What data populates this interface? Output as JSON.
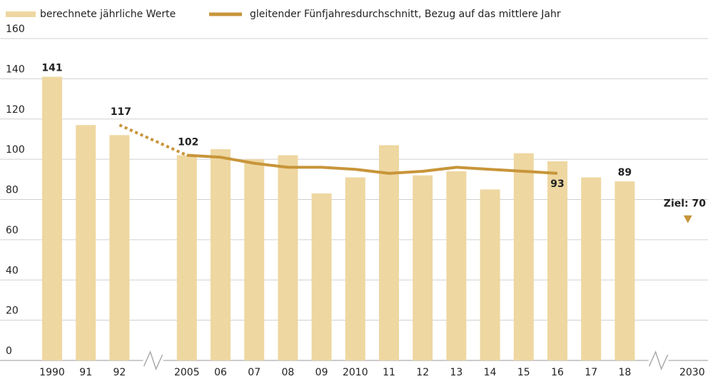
{
  "chart_data": {
    "type": "bar_line",
    "categories": [
      "1990",
      "91",
      "92",
      null,
      "2005",
      "06",
      "07",
      "08",
      "09",
      "2010",
      "11",
      "12",
      "13",
      "14",
      "15",
      "16",
      "17",
      "18",
      null,
      "2030"
    ],
    "series": [
      {
        "name": "berechnete jährliche Werte",
        "type": "bar",
        "color": "#eed7a1",
        "values": [
          141,
          117,
          112,
          null,
          102,
          105,
          100,
          102,
          83,
          91,
          107,
          92,
          94,
          85,
          103,
          99,
          91,
          89,
          null,
          null
        ],
        "labeled": [
          0,
          17
        ]
      },
      {
        "name": "gleitender Fünfjahresdurchschnitt, Bezug auf das mittlere Jahr",
        "type": "line",
        "color": "#c8953a",
        "values": [
          null,
          null,
          117,
          null,
          102,
          101,
          98,
          96,
          96,
          95,
          93,
          94,
          96,
          95,
          94,
          93,
          null,
          null,
          null,
          null
        ],
        "labeled": [
          2,
          4,
          15
        ],
        "bridge_gaps": "dotted"
      }
    ],
    "target": {
      "category": "2030",
      "value": 70,
      "label": "Ziel: 70"
    },
    "ylim": [
      0,
      160
    ],
    "yticks": [
      0,
      20,
      40,
      60,
      80,
      100,
      120,
      140,
      160
    ],
    "grid": true,
    "legend": "top"
  }
}
